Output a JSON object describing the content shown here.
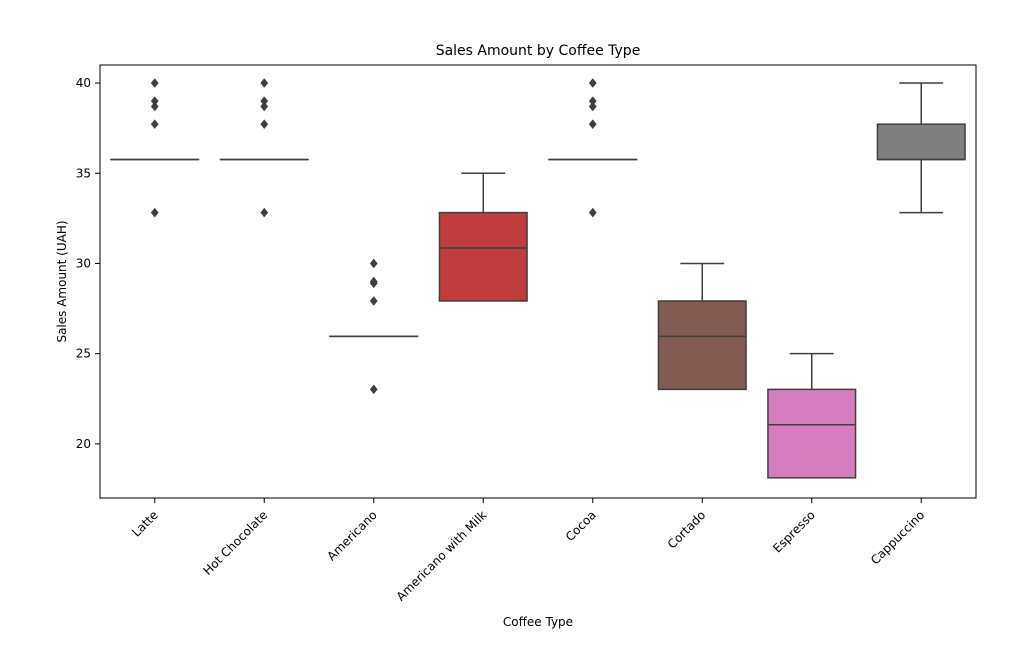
{
  "chart_data": {
    "type": "boxplot",
    "title": "Sales Amount by Coffee Type",
    "xlabel": "Coffee Type",
    "ylabel": "Sales Amount (UAH)",
    "ylim": [
      17,
      41
    ],
    "yticks": [
      20,
      25,
      30,
      35,
      40
    ],
    "categories": [
      "Latte",
      "Hot Chocolate",
      "Americano",
      "Americano with Milk",
      "Cocoa",
      "Cortado",
      "Espresso",
      "Cappuccino"
    ],
    "boxes": [
      {
        "name": "Latte",
        "color": "#3a75af",
        "min": 35.76,
        "q1": 35.76,
        "median": 35.76,
        "q3": 35.76,
        "max": 35.76,
        "outliers": [
          32.82,
          37.72,
          38.7,
          39.0,
          40.0
        ]
      },
      {
        "name": "Hot Chocolate",
        "color": "#ef8636",
        "min": 35.76,
        "q1": 35.76,
        "median": 35.76,
        "q3": 35.76,
        "max": 35.76,
        "outliers": [
          32.82,
          37.72,
          38.7,
          39.0,
          40.0
        ]
      },
      {
        "name": "Americano",
        "color": "#3b923b",
        "min": 25.96,
        "q1": 25.96,
        "median": 25.96,
        "q3": 25.96,
        "max": 25.96,
        "outliers": [
          23.02,
          27.92,
          28.9,
          29.0,
          30.0
        ]
      },
      {
        "name": "Americano with Milk",
        "color": "#c03d3e",
        "min": 27.92,
        "q1": 27.92,
        "median": 30.86,
        "q3": 32.82,
        "max": 35.0,
        "outliers": []
      },
      {
        "name": "Cocoa",
        "color": "#9372b2",
        "min": 35.76,
        "q1": 35.76,
        "median": 35.76,
        "q3": 35.76,
        "max": 35.76,
        "outliers": [
          32.82,
          37.72,
          38.7,
          39.0,
          40.0
        ]
      },
      {
        "name": "Cortado",
        "color": "#845b53",
        "min": 23.02,
        "q1": 23.02,
        "median": 25.96,
        "q3": 27.92,
        "max": 30.0,
        "outliers": []
      },
      {
        "name": "Espresso",
        "color": "#d57dbe",
        "min": 18.12,
        "q1": 18.12,
        "median": 21.06,
        "q3": 23.02,
        "max": 25.0,
        "outliers": []
      },
      {
        "name": "Cappuccino",
        "color": "#7f7f7f",
        "min": 32.82,
        "q1": 35.76,
        "median": 35.76,
        "q3": 37.72,
        "max": 40.0,
        "outliers": []
      }
    ]
  }
}
